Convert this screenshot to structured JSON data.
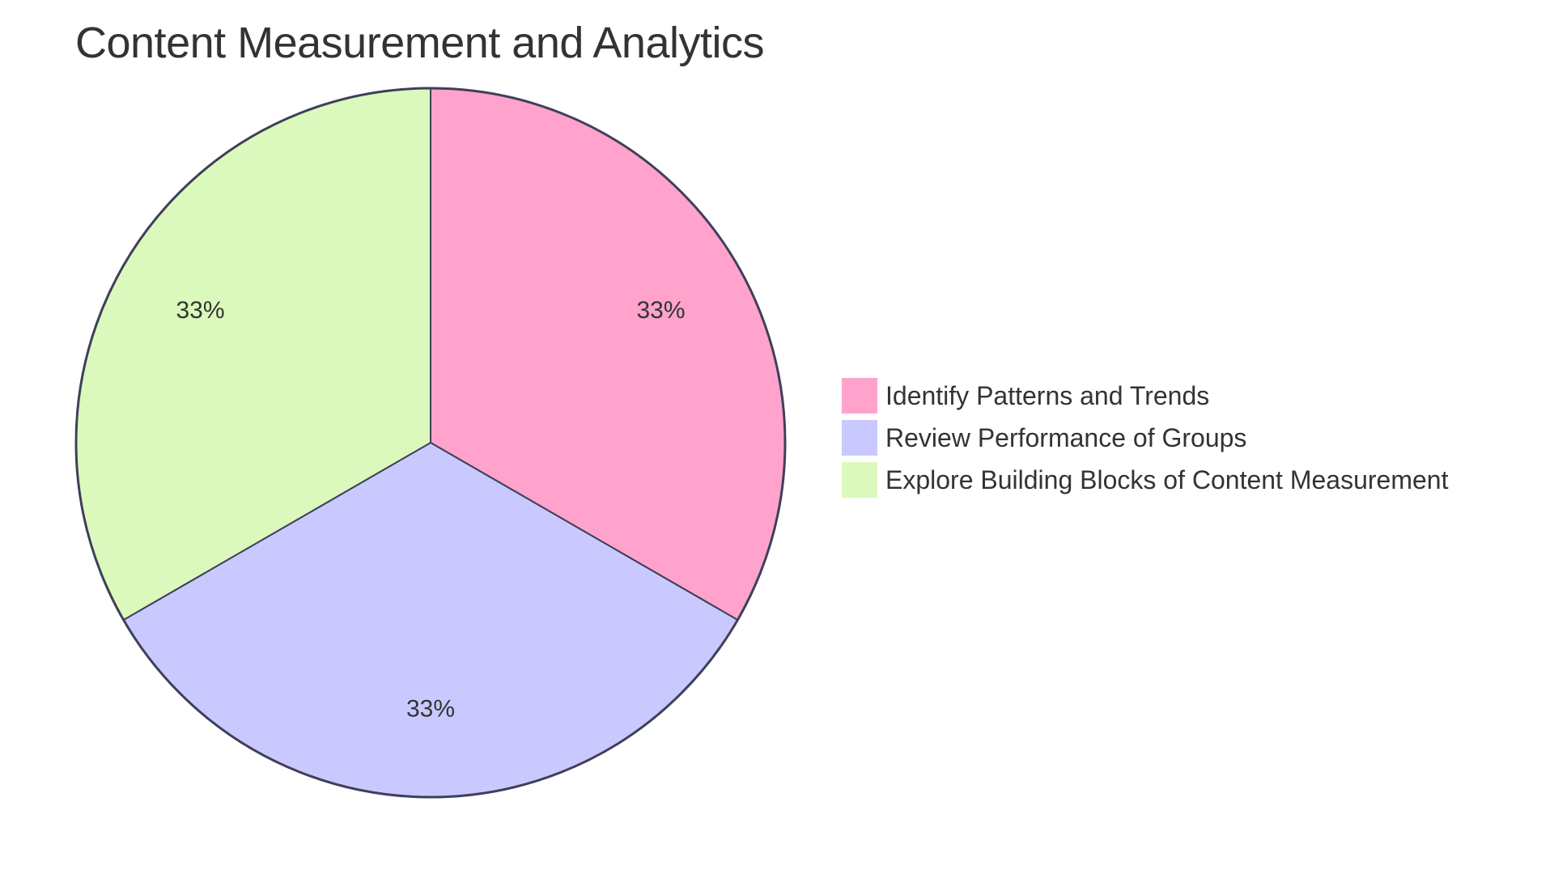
{
  "chart_data": {
    "type": "pie",
    "title": "Content Measurement and Analytics",
    "categories": [
      "Identify Patterns and Trends",
      "Review Performance of Groups",
      "Explore Building Blocks of Content Measurement"
    ],
    "values": [
      33.33,
      33.33,
      33.33
    ],
    "labels": [
      "33%",
      "33%",
      "33%"
    ],
    "colors": [
      "#FFA3CC",
      "#C9C9FF",
      "#DBF9BC"
    ],
    "stroke_color": "#3F3F5A",
    "legend_position": "right"
  },
  "title": "Content Measurement and Analytics",
  "legend": {
    "items": [
      {
        "label": "Identify Patterns and Trends",
        "color": "#FFA3CC"
      },
      {
        "label": "Review Performance of Groups",
        "color": "#C9C9FF"
      },
      {
        "label": "Explore Building Blocks of Content Measurement",
        "color": "#DBF9BC"
      }
    ]
  },
  "slices": [
    {
      "label": "33%"
    },
    {
      "label": "33%"
    },
    {
      "label": "33%"
    }
  ]
}
